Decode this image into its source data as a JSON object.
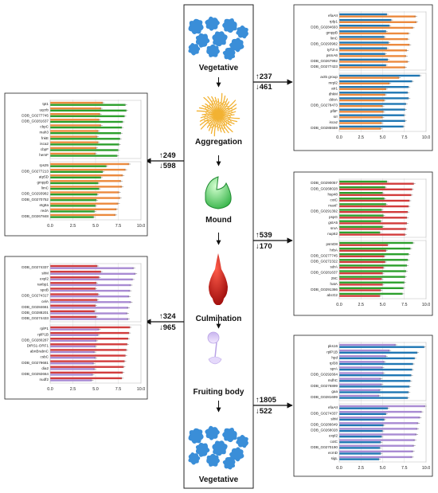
{
  "stages": [
    "Vegetative",
    "Aggregation",
    "Mound",
    "Culmination",
    "Fruiting body",
    "Vegetative"
  ],
  "colors": {
    "blue": "#1f77b4",
    "orange": "#ec8a3e",
    "green": "#2ca02c",
    "red": "#d23c3c",
    "purple": "#a98bd3",
    "slime": "#3a8ed8",
    "aggregation": "#f2b233",
    "mound": "#39c24a",
    "culmination": "#c81e1e",
    "fruiting": "#d4c2f3"
  },
  "chart_data": [
    {
      "type": "bar",
      "id": "veg-agg",
      "transition": {
        "up": "237",
        "down": "461"
      },
      "xlim": [
        0,
        10
      ],
      "xticks": [
        "0.0",
        "2.5",
        "5.0",
        "7.5",
        "10.0"
      ],
      "groups": [
        {
          "categories": [
            "efaAII",
            "rplp1",
            "DDB_G0284693",
            "gmppB",
            "limC",
            "DDB_G0293982",
            "tyTZ-4",
            "psmA6",
            "DDB_G0267992",
            "DDB_G0277423"
          ],
          "series": [
            {
              "color": "blue",
              "values": [
                5.5,
                6.0,
                5.8,
                5.4,
                5.2,
                5.7,
                5.5,
                5.3,
                5.6,
                5.4
              ]
            },
            {
              "color": "orange",
              "values": [
                8.8,
                8.9,
                8.5,
                8.0,
                7.9,
                8.1,
                7.8,
                7.7,
                7.9,
                7.6
              ]
            }
          ]
        },
        {
          "categories": [
            "act5 group",
            "mrpl2",
            "atr1",
            "dhkM",
            "ddoA",
            "DDB_G0278473",
            "pfbF",
            "srr",
            "iscaz",
            "DDB_G0285559"
          ],
          "series": [
            {
              "color": "blue",
              "values": [
                9.3,
                8.4,
                8.0,
                7.9,
                8.0,
                7.7,
                7.6,
                7.5,
                7.6,
                7.4
              ]
            },
            {
              "color": "orange",
              "values": [
                6.9,
                5.8,
                5.4,
                5.3,
                5.2,
                5.0,
                5.1,
                5.0,
                4.9,
                4.8
              ]
            }
          ]
        }
      ]
    },
    {
      "type": "bar",
      "id": "agg-mound",
      "transition": {
        "up": "249",
        "down": "598"
      },
      "xlim": [
        0,
        10
      ],
      "xticks": [
        "0.0",
        "2.5",
        "5.0",
        "7.5",
        "10.0"
      ],
      "groups": [
        {
          "categories": [
            "tpt1",
            "uqcrb",
            "DDB_G0277745",
            "DDB_G0281637",
            "cbpC",
            "mah3",
            "fnkE",
            "isca2",
            "cbpF",
            "hemF"
          ],
          "series": [
            {
              "color": "orange",
              "values": [
                5.8,
                5.6,
                5.5,
                5.4,
                5.6,
                5.3,
                5.2,
                5.3,
                5.1,
                5.0
              ]
            },
            {
              "color": "green",
              "values": [
                8.3,
                8.4,
                8.2,
                8.0,
                7.9,
                7.8,
                7.7,
                7.6,
                7.5,
                7.4
              ]
            }
          ]
        },
        {
          "categories": [
            "rps25",
            "DDB_G0277213",
            "atp5D",
            "gmppB",
            "limC",
            "DDB_G0293982",
            "DDB_G0270752",
            "etg8a",
            "redA",
            "DDB_G0267848"
          ],
          "series": [
            {
              "color": "orange",
              "values": [
                8.7,
                8.3,
                8.0,
                7.8,
                7.9,
                7.6,
                7.7,
                7.5,
                7.3,
                7.2
              ]
            },
            {
              "color": "green",
              "values": [
                6.2,
                5.8,
                5.6,
                5.3,
                5.4,
                5.2,
                5.1,
                5.0,
                4.9,
                4.8
              ]
            }
          ]
        }
      ]
    },
    {
      "type": "bar",
      "id": "mound-culm",
      "transition": {
        "up": "539",
        "down": "170"
      },
      "xlim": [
        0,
        10
      ],
      "xticks": [
        "0.0",
        "2.5",
        "5.0",
        "7.5",
        "10.0"
      ],
      "groups": [
        {
          "categories": [
            "DDB_G0290057",
            "DDB_G0268028",
            "hsp48",
            "cotC",
            "manF",
            "DDB_G0291392",
            "pspG",
            "gstA5",
            "srxA",
            "nup62"
          ],
          "series": [
            {
              "color": "green",
              "values": [
                5.5,
                5.3,
                5.0,
                5.2,
                5.4,
                4.9,
                5.1,
                4.8,
                5.0,
                4.7
              ]
            },
            {
              "color": "red",
              "values": [
                8.6,
                8.4,
                8.3,
                8.1,
                8.0,
                7.9,
                7.8,
                7.8,
                7.7,
                7.6
              ]
            }
          ]
        },
        {
          "categories": [
            "psmD8",
            "hrbA",
            "DDB_G0277745",
            "DDB_G0272322",
            "sdrA",
            "DDB_G0281637",
            "29C",
            "hatA",
            "DDB_G0291366",
            "abcG2"
          ],
          "series": [
            {
              "color": "green",
              "values": [
                8.5,
                8.2,
                8.0,
                7.9,
                7.8,
                7.7,
                7.6,
                7.5,
                7.4,
                7.3
              ]
            },
            {
              "color": "red",
              "values": [
                5.6,
                5.4,
                5.2,
                5.3,
                5.1,
                5.0,
                4.9,
                5.0,
                4.8,
                4.7
              ]
            }
          ]
        }
      ]
    },
    {
      "type": "bar",
      "id": "culm-fruit",
      "transition": {
        "up": "324",
        "down": "965"
      },
      "xlim": [
        0,
        10
      ],
      "xticks": [
        "0.0",
        "2.5",
        "5.0",
        "7.5",
        "10.0"
      ],
      "groups": [
        {
          "categories": [
            "DDB_G0274337",
            "slrM",
            "expl2",
            "ranbp1",
            "spoB",
            "DDB_G0274317",
            "celA",
            "DDB_G0284661",
            "DDB_G0288201",
            "DDB_G0274433"
          ],
          "series": [
            {
              "color": "red",
              "values": [
                5.2,
                5.6,
                5.4,
                5.1,
                5.0,
                5.3,
                5.2,
                5.0,
                4.9,
                5.1
              ]
            },
            {
              "color": "purple",
              "values": [
                9.2,
                9.4,
                9.1,
                8.9,
                8.8,
                8.7,
                8.9,
                8.6,
                8.5,
                8.6
              ]
            }
          ]
        },
        {
          "categories": [
            "rplP1",
            "rplP1B",
            "DDB_G0280287",
            "DIRS1-ORF1",
            "abnBrabnC",
            "csbC",
            "DDB_G0279681",
            "dia2",
            "DDB_G0292664",
            "nudf2"
          ],
          "series": [
            {
              "color": "red",
              "values": [
                8.8,
                8.7,
                8.6,
                8.5,
                8.4,
                8.3,
                8.2,
                8.1,
                8.0,
                7.9
              ]
            },
            {
              "color": "purple",
              "values": [
                5.4,
                5.3,
                5.1,
                5.0,
                4.9,
                5.0,
                4.8,
                4.9,
                4.7,
                4.6
              ]
            }
          ]
        }
      ]
    },
    {
      "type": "bar",
      "id": "fruit-veg",
      "transition": {
        "up": "1805",
        "down": "522"
      },
      "xlim": [
        0,
        10
      ],
      "xticks": [
        "0.0",
        "2.5",
        "5.0",
        "7.5",
        "10.0"
      ],
      "groups": [
        {
          "categories": [
            "pks16",
            "rplP1B",
            "hpd",
            "rpl38",
            "sprA",
            "DDB_G0292664",
            "mdhC",
            "DDB_G0276899",
            "gaa",
            "DDB_G0281699"
          ],
          "series": [
            {
              "color": "purple",
              "values": [
                6.5,
                5.8,
                5.4,
                5.2,
                5.0,
                5.1,
                4.8,
                4.9,
                4.7,
                4.6
              ]
            },
            {
              "color": "blue",
              "values": [
                9.8,
                9.0,
                8.7,
                8.5,
                8.4,
                8.3,
                8.2,
                8.1,
                8.0,
                7.9
              ]
            }
          ]
        },
        {
          "categories": [
            "efaAII",
            "DDB_G0274337",
            "slrM",
            "DDB_G0286649",
            "DDB_G0268028",
            "expl2",
            "cotC",
            "DDB_G0270190",
            "ecmD",
            "sigL"
          ],
          "series": [
            {
              "color": "purple",
              "values": [
                9.9,
                9.5,
                9.3,
                9.1,
                9.0,
                8.9,
                8.7,
                8.6,
                8.5,
                8.4
              ]
            },
            {
              "color": "blue",
              "values": [
                5.6,
                5.4,
                5.2,
                5.1,
                5.0,
                4.9,
                4.8,
                4.7,
                4.8,
                4.6
              ]
            }
          ]
        }
      ]
    }
  ]
}
